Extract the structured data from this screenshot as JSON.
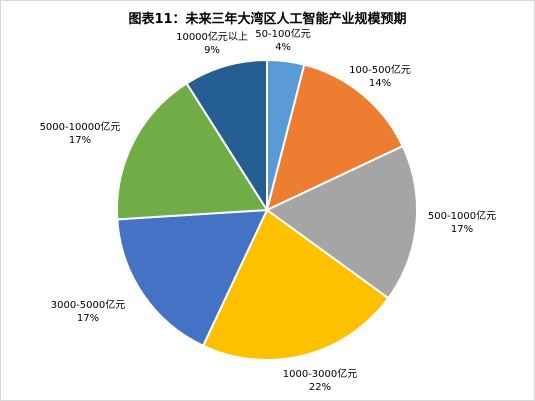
{
  "chart_data": {
    "type": "pie",
    "title": "图表11：未来三年大湾区人工智能产业规模预期",
    "categories": [
      "50-100亿元",
      "100-500亿元",
      "500-1000亿元",
      "1000-3000亿元",
      "3000-5000亿元",
      "5000-10000亿元",
      "10000亿元以上"
    ],
    "values": [
      4,
      14,
      17,
      22,
      17,
      17,
      9
    ],
    "percent_labels": [
      "4%",
      "14%",
      "17%",
      "22%",
      "17%",
      "17%",
      "9%"
    ],
    "colors": [
      "#5b9bd5",
      "#ed7d31",
      "#a5a5a5",
      "#ffc000",
      "#4472c4",
      "#70ad47",
      "#255e91"
    ],
    "start_angle_deg": 0,
    "direction": "clockwise",
    "legend": "none"
  }
}
